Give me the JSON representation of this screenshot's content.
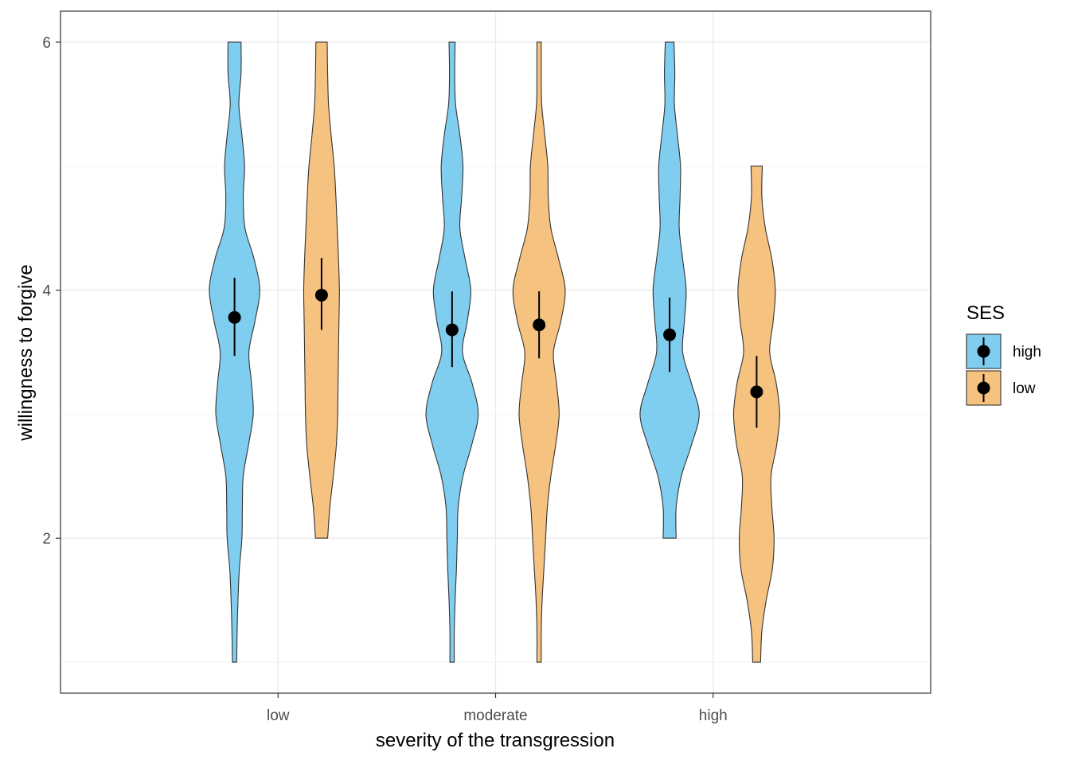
{
  "chart_data": {
    "type": "violin",
    "xlabel": "severity of the transgression",
    "ylabel": "willingness to forgive",
    "categories": [
      "low",
      "moderate",
      "high"
    ],
    "y_ticks": [
      2,
      4,
      6
    ],
    "ylim": [
      0.75,
      6.25
    ],
    "grid": true,
    "legend": {
      "title": "SES",
      "position": "right",
      "entries": [
        {
          "label": "high",
          "color": "#7fcdef"
        },
        {
          "label": "low",
          "color": "#f6c27f"
        }
      ]
    },
    "series": [
      {
        "name": "high",
        "color": "#7fcdef",
        "groups": [
          {
            "category": "low",
            "mean": 3.78,
            "ci": [
              3.47,
              4.1
            ],
            "density": [
              [
                1.0,
                0.05
              ],
              [
                1.25,
                0.06
              ],
              [
                1.5,
                0.08
              ],
              [
                1.75,
                0.11
              ],
              [
                2.0,
                0.17
              ],
              [
                2.25,
                0.18
              ],
              [
                2.5,
                0.2
              ],
              [
                2.75,
                0.32
              ],
              [
                3.0,
                0.43
              ],
              [
                3.25,
                0.39
              ],
              [
                3.5,
                0.33
              ],
              [
                3.75,
                0.47
              ],
              [
                4.0,
                0.58
              ],
              [
                4.25,
                0.45
              ],
              [
                4.5,
                0.24
              ],
              [
                4.75,
                0.2
              ],
              [
                5.0,
                0.23
              ],
              [
                5.25,
                0.17
              ],
              [
                5.5,
                0.1
              ],
              [
                5.75,
                0.15
              ],
              [
                6.0,
                0.15
              ]
            ]
          },
          {
            "category": "moderate",
            "mean": 3.68,
            "ci": [
              3.38,
              3.99
            ],
            "density": [
              [
                1.0,
                0.05
              ],
              [
                1.25,
                0.05
              ],
              [
                1.5,
                0.07
              ],
              [
                1.75,
                0.1
              ],
              [
                2.0,
                0.12
              ],
              [
                2.25,
                0.14
              ],
              [
                2.5,
                0.25
              ],
              [
                2.75,
                0.45
              ],
              [
                3.0,
                0.6
              ],
              [
                3.25,
                0.46
              ],
              [
                3.5,
                0.24
              ],
              [
                3.75,
                0.35
              ],
              [
                4.0,
                0.43
              ],
              [
                4.25,
                0.3
              ],
              [
                4.5,
                0.18
              ],
              [
                4.75,
                0.22
              ],
              [
                5.0,
                0.25
              ],
              [
                5.25,
                0.18
              ],
              [
                5.5,
                0.08
              ],
              [
                5.75,
                0.06
              ],
              [
                6.0,
                0.07
              ]
            ]
          },
          {
            "category": "high",
            "mean": 3.64,
            "ci": [
              3.34,
              3.94
            ],
            "density": [
              [
                2.0,
                0.15
              ],
              [
                2.25,
                0.15
              ],
              [
                2.5,
                0.27
              ],
              [
                2.75,
                0.5
              ],
              [
                3.0,
                0.68
              ],
              [
                3.25,
                0.5
              ],
              [
                3.5,
                0.3
              ],
              [
                3.75,
                0.34
              ],
              [
                4.0,
                0.38
              ],
              [
                4.25,
                0.3
              ],
              [
                4.5,
                0.22
              ],
              [
                4.75,
                0.24
              ],
              [
                5.0,
                0.25
              ],
              [
                5.25,
                0.18
              ],
              [
                5.5,
                0.11
              ],
              [
                5.75,
                0.12
              ],
              [
                6.0,
                0.1
              ]
            ]
          }
        ]
      },
      {
        "name": "low",
        "color": "#f6c27f",
        "groups": [
          {
            "category": "low",
            "mean": 3.96,
            "ci": [
              3.68,
              4.26
            ],
            "density": [
              [
                2.0,
                0.14
              ],
              [
                2.25,
                0.19
              ],
              [
                2.5,
                0.27
              ],
              [
                2.75,
                0.34
              ],
              [
                3.0,
                0.37
              ],
              [
                3.25,
                0.38
              ],
              [
                3.5,
                0.39
              ],
              [
                3.75,
                0.4
              ],
              [
                4.0,
                0.41
              ],
              [
                4.25,
                0.39
              ],
              [
                4.5,
                0.36
              ],
              [
                4.75,
                0.33
              ],
              [
                5.0,
                0.29
              ],
              [
                5.25,
                0.22
              ],
              [
                5.5,
                0.16
              ],
              [
                5.75,
                0.14
              ],
              [
                6.0,
                0.13
              ]
            ]
          },
          {
            "category": "moderate",
            "mean": 3.72,
            "ci": [
              3.45,
              3.99
            ],
            "density": [
              [
                1.0,
                0.05
              ],
              [
                1.25,
                0.05
              ],
              [
                1.5,
                0.07
              ],
              [
                1.75,
                0.11
              ],
              [
                2.0,
                0.15
              ],
              [
                2.25,
                0.19
              ],
              [
                2.5,
                0.27
              ],
              [
                2.75,
                0.38
              ],
              [
                3.0,
                0.46
              ],
              [
                3.25,
                0.4
              ],
              [
                3.5,
                0.33
              ],
              [
                3.75,
                0.5
              ],
              [
                4.0,
                0.6
              ],
              [
                4.25,
                0.45
              ],
              [
                4.5,
                0.27
              ],
              [
                4.75,
                0.21
              ],
              [
                5.0,
                0.2
              ],
              [
                5.25,
                0.13
              ],
              [
                5.5,
                0.06
              ],
              [
                5.75,
                0.05
              ],
              [
                6.0,
                0.05
              ]
            ]
          },
          {
            "category": "high",
            "mean": 3.18,
            "ci": [
              2.89,
              3.47
            ],
            "density": [
              [
                1.0,
                0.09
              ],
              [
                1.25,
                0.12
              ],
              [
                1.5,
                0.22
              ],
              [
                1.75,
                0.36
              ],
              [
                2.0,
                0.4
              ],
              [
                2.25,
                0.35
              ],
              [
                2.5,
                0.33
              ],
              [
                2.75,
                0.46
              ],
              [
                3.0,
                0.53
              ],
              [
                3.25,
                0.45
              ],
              [
                3.5,
                0.3
              ],
              [
                3.75,
                0.38
              ],
              [
                4.0,
                0.43
              ],
              [
                4.25,
                0.35
              ],
              [
                4.5,
                0.2
              ],
              [
                4.75,
                0.12
              ],
              [
                5.0,
                0.13
              ]
            ]
          }
        ]
      }
    ]
  }
}
